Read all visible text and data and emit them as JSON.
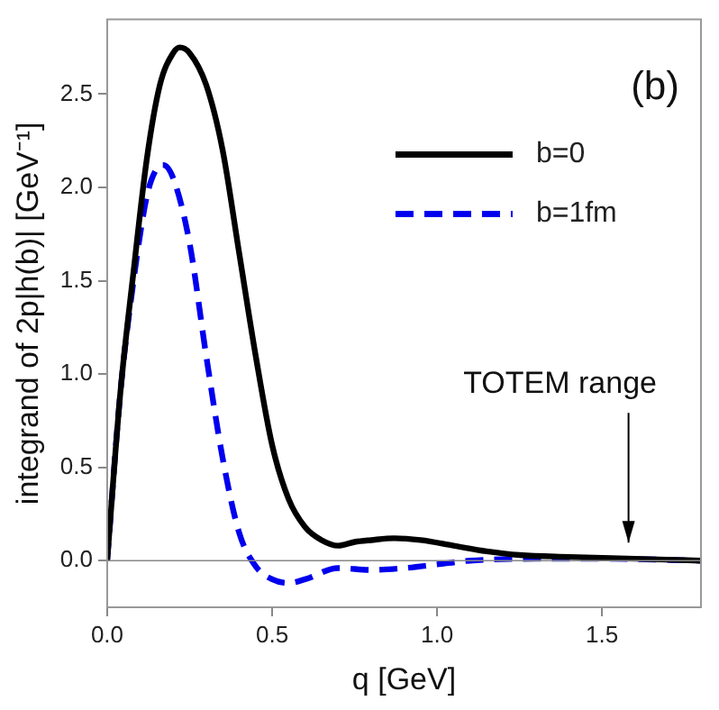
{
  "chart_data": {
    "type": "line",
    "xlabel": "q [GeV]",
    "ylabel": "integrand of 2p|h(b)| [GeV⁻¹]",
    "xlim": [
      0,
      1.8
    ],
    "ylim": [
      -0.25,
      2.9
    ],
    "xticks": [
      {
        "value": 0,
        "label": "0.0"
      },
      {
        "value": 0.5,
        "label": "0.5"
      },
      {
        "value": 1,
        "label": "1.0"
      },
      {
        "value": 1.5,
        "label": "1.5"
      }
    ],
    "yticks": [
      {
        "value": 0,
        "label": "0.0"
      },
      {
        "value": 0.5,
        "label": "0.5"
      },
      {
        "value": 1,
        "label": "1.0"
      },
      {
        "value": 1.5,
        "label": "1.5"
      },
      {
        "value": 2,
        "label": "2.0"
      },
      {
        "value": 2.5,
        "label": "2.5"
      }
    ],
    "grid": false,
    "legend": "right",
    "marker": "none",
    "ref_lines": [
      {
        "axis": "y",
        "value": 0,
        "color": "#888888"
      }
    ],
    "annotations": [
      "(b)",
      "TOTEM range"
    ],
    "series": [
      {
        "name": "b=0",
        "color": "#000000",
        "line_style": "solid",
        "x": [
          0,
          0.04,
          0.08,
          0.12,
          0.16,
          0.2,
          0.22,
          0.25,
          0.3,
          0.35,
          0.4,
          0.45,
          0.5,
          0.55,
          0.6,
          0.65,
          0.7,
          0.75,
          0.8,
          0.87,
          0.95,
          1.05,
          1.15,
          1.25,
          1.4,
          1.6,
          1.8
        ],
        "values": [
          0,
          0.9,
          1.55,
          2.15,
          2.55,
          2.72,
          2.75,
          2.72,
          2.55,
          2.2,
          1.65,
          1.1,
          0.62,
          0.33,
          0.18,
          0.11,
          0.08,
          0.1,
          0.11,
          0.12,
          0.11,
          0.08,
          0.05,
          0.03,
          0.02,
          0.01,
          0
        ]
      },
      {
        "name": "b=1fm",
        "color": "#0000ee",
        "line_style": "dashed",
        "x": [
          0,
          0.04,
          0.08,
          0.12,
          0.15,
          0.17,
          0.2,
          0.25,
          0.3,
          0.35,
          0.4,
          0.45,
          0.5,
          0.55,
          0.6,
          0.7,
          0.8,
          0.9,
          1.0,
          1.1,
          1.3,
          1.5,
          1.8
        ],
        "values": [
          0,
          0.9,
          1.5,
          1.95,
          2.1,
          2.12,
          2.05,
          1.7,
          1.1,
          0.55,
          0.15,
          -0.03,
          -0.1,
          -0.12,
          -0.1,
          -0.04,
          -0.05,
          -0.04,
          -0.02,
          0,
          0.01,
          0.01,
          0
        ]
      }
    ]
  }
}
